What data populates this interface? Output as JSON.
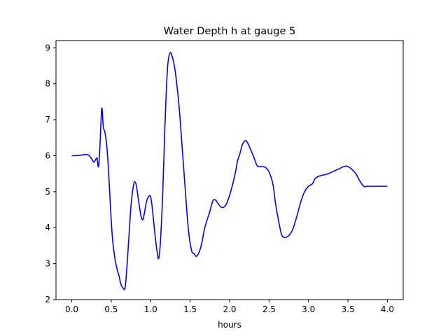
{
  "chart_data": {
    "type": "line",
    "title": "Water Depth h at gauge 5",
    "xlabel": "hours",
    "ylabel": "",
    "xlim": [
      -0.2,
      4.2
    ],
    "ylim": [
      2.0,
      9.2
    ],
    "xticks": [
      0.0,
      0.5,
      1.0,
      1.5,
      2.0,
      2.5,
      3.0,
      3.5,
      4.0
    ],
    "xtick_labels": [
      "0.0",
      "0.5",
      "1.0",
      "1.5",
      "2.0",
      "2.5",
      "3.0",
      "3.5",
      "4.0"
    ],
    "yticks": [
      2,
      3,
      4,
      5,
      6,
      7,
      8,
      9
    ],
    "ytick_labels": [
      "2",
      "3",
      "4",
      "5",
      "6",
      "7",
      "8",
      "9"
    ],
    "grid": false,
    "series": [
      {
        "color": "#0000ff",
        "x": [
          0.0,
          0.1,
          0.2,
          0.25,
          0.28,
          0.3,
          0.32,
          0.34,
          0.36,
          0.38,
          0.4,
          0.42,
          0.44,
          0.46,
          0.48,
          0.5,
          0.52,
          0.55,
          0.58,
          0.6,
          0.62,
          0.65,
          0.68,
          0.72,
          0.75,
          0.78,
          0.8,
          0.82,
          0.84,
          0.86,
          0.88,
          0.9,
          0.92,
          0.95,
          0.98,
          1.0,
          1.02,
          1.05,
          1.08,
          1.1,
          1.12,
          1.15,
          1.18,
          1.2,
          1.22,
          1.25,
          1.28,
          1.3,
          1.32,
          1.35,
          1.37,
          1.39,
          1.42,
          1.45,
          1.48,
          1.52,
          1.55,
          1.58,
          1.62,
          1.65,
          1.68,
          1.7,
          1.72,
          1.75,
          1.78,
          1.8,
          1.83,
          1.86,
          1.9,
          1.95,
          2.0,
          2.05,
          2.08,
          2.1,
          2.13,
          2.16,
          2.2,
          2.23,
          2.26,
          2.3,
          2.35,
          2.4,
          2.45,
          2.5,
          2.55,
          2.58,
          2.62,
          2.66,
          2.7,
          2.75,
          2.8,
          2.85,
          2.9,
          2.95,
          3.0,
          3.05,
          3.08,
          3.12,
          3.16,
          3.2,
          3.25,
          3.3,
          3.35,
          3.4,
          3.45,
          3.5,
          3.55,
          3.6,
          3.65,
          3.7,
          3.75,
          3.8,
          3.84,
          3.88,
          3.92,
          3.96,
          4.0
        ],
        "y": [
          6.0,
          6.01,
          6.03,
          5.92,
          5.82,
          5.88,
          5.93,
          5.7,
          6.4,
          7.32,
          6.8,
          6.65,
          6.35,
          5.8,
          5.0,
          4.2,
          3.6,
          3.1,
          2.8,
          2.65,
          2.45,
          2.32,
          2.4,
          3.6,
          4.6,
          5.15,
          5.28,
          5.15,
          4.85,
          4.55,
          4.3,
          4.22,
          4.4,
          4.75,
          4.88,
          4.85,
          4.55,
          3.9,
          3.35,
          3.14,
          3.5,
          4.8,
          6.8,
          7.9,
          8.6,
          8.87,
          8.7,
          8.5,
          8.2,
          7.6,
          7.1,
          6.5,
          5.6,
          4.7,
          3.9,
          3.35,
          3.28,
          3.2,
          3.35,
          3.6,
          3.95,
          4.1,
          4.25,
          4.45,
          4.7,
          4.78,
          4.75,
          4.65,
          4.56,
          4.62,
          4.9,
          5.3,
          5.6,
          5.85,
          6.05,
          6.3,
          6.42,
          6.35,
          6.2,
          6.0,
          5.72,
          5.7,
          5.68,
          5.55,
          5.2,
          4.7,
          4.2,
          3.8,
          3.73,
          3.78,
          3.95,
          4.3,
          4.7,
          5.0,
          5.15,
          5.22,
          5.35,
          5.42,
          5.45,
          5.47,
          5.5,
          5.55,
          5.6,
          5.65,
          5.7,
          5.7,
          5.62,
          5.5,
          5.3,
          5.15,
          5.15,
          5.15,
          5.15,
          5.15,
          5.15,
          5.15,
          5.15
        ]
      }
    ]
  }
}
